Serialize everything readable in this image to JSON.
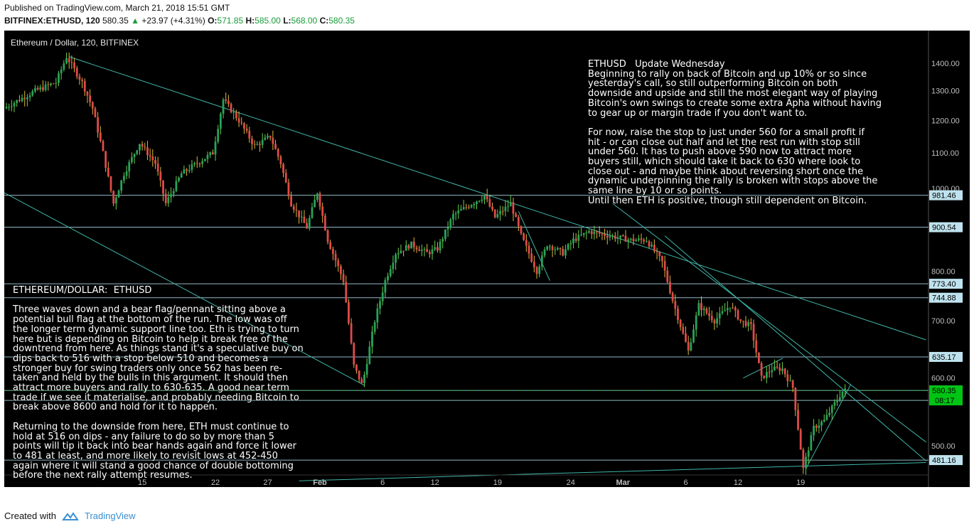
{
  "header": {
    "published": "Published on TradingView.com, March 21, 2018 15:51 GMT",
    "symbol": "BITFINEX:ETHUSD, 120",
    "last": "580.35",
    "change": "+23.97 (+4.31%)",
    "open": "571.85",
    "high": "585.00",
    "low": "568.00",
    "close": "580.35"
  },
  "legend": "Ethereum / Dollar, 120, BITFINEX",
  "notes": {
    "right": "ETHUSD   Update Wednesday\nBeginning to rally on back of Bitcoin and up 10% or so since\nyesterday's call, so still outperforming Bitcoin on both\ndownside and upside and still the most elegant way of playing\nBitcoin's own swings to create some extra Apha without having\nto gear up or margin trade if you don't want to.\n\nFor now, raise the stop to just under 560 for a small profit if\nhit - or can close out half and let the rest run with stop still\nunder 560. It has to push above 590 now to attract more\nbuyers still, which should take it back to 630 where look to\nclose out - and maybe think about reversing short once the\ndynamic underpinning the rally is broken with stops above the\nsame line by 10 or so points.\nUntil then ETH is positive, though still dependent on Bitcoin.",
    "left": "ETHEREUM/DOLLAR:  ETHUSD\n\nThree waves down and a bear flag/pennant sitting above a\npotential bull flag at the bottom of the run. The low was off\nthe longer term dynamic support line too. Eth is trying to turn\nhere but is depending on Bitcoin to help it break free of the\ndowntrend from here. As things stand it's a speculative buy on\ndips back to 516 with a stop below 510 and becomes a\nstronger buy for swing traders only once 562 has been re-\ntaken and held by the bulls in this argument. It should then\nattract more buyers and rally to 630-635. A good near term\ntrade if we see it materialise, and probably needing Bitcoin to\nbreak above 8600 and hold for it to happen.\n\nReturning to the downside from here, ETH must continue to\nhold at 516 on dips - any failure to do so by more than 5\npoints will tip it back into bear hands again and force it lower\nto 481 at least, and more likely to revisit lows at 452-450\nagain where it will stand a good chance of double bottoming\nbefore the next rally attempt resumes."
  },
  "footer": {
    "created_with": "Created with",
    "brand": "TradingView"
  },
  "chart_data": {
    "type": "line",
    "title": "Ethereum / Dollar, 120, BITFINEX",
    "y_scale": "log",
    "ylim": [
      455,
      1450
    ],
    "y_ticks": [
      1400,
      1300,
      1200,
      1100,
      1000,
      900,
      800,
      700,
      600,
      500
    ],
    "y_tick_labels": [
      "1400.00",
      "1300.00",
      "1200.00",
      "1100.00",
      "1000.00",
      "900.00",
      "800.00",
      "700.00",
      "600.00",
      "500.00"
    ],
    "x_ticks": [
      13,
      20,
      25,
      30,
      36,
      41,
      47,
      54,
      59,
      65,
      70,
      76,
      81,
      86
    ],
    "x_tick_labels": [
      "15",
      "22",
      "27",
      "Feb",
      "6",
      "12",
      "19",
      "24",
      "Mar",
      "6",
      "12",
      "19"
    ],
    "x_tick_index": [
      13,
      20,
      25,
      30,
      36,
      41,
      47,
      54,
      59,
      65,
      70,
      76
    ],
    "price_path": [
      {
        "t": 0,
        "p": 1240
      },
      {
        "t": 3,
        "p": 1300
      },
      {
        "t": 5,
        "p": 1330
      },
      {
        "t": 6,
        "p": 1425
      },
      {
        "t": 7.5,
        "p": 1330
      },
      {
        "t": 8.5,
        "p": 1240
      },
      {
        "t": 9.5,
        "p": 1100
      },
      {
        "t": 10.5,
        "p": 960
      },
      {
        "t": 11.5,
        "p": 1040
      },
      {
        "t": 13,
        "p": 1130
      },
      {
        "t": 14.5,
        "p": 1070
      },
      {
        "t": 15.5,
        "p": 960
      },
      {
        "t": 17,
        "p": 1040
      },
      {
        "t": 18.5,
        "p": 1070
      },
      {
        "t": 20,
        "p": 1100
      },
      {
        "t": 21,
        "p": 1270
      },
      {
        "t": 22.5,
        "p": 1200
      },
      {
        "t": 24,
        "p": 1120
      },
      {
        "t": 25.5,
        "p": 1150
      },
      {
        "t": 26.5,
        "p": 1070
      },
      {
        "t": 27.5,
        "p": 960
      },
      {
        "t": 29,
        "p": 900
      },
      {
        "t": 30,
        "p": 990
      },
      {
        "t": 31,
        "p": 870
      },
      {
        "t": 32.5,
        "p": 780
      },
      {
        "t": 33.5,
        "p": 620
      },
      {
        "t": 34.3,
        "p": 588
      },
      {
        "t": 35.5,
        "p": 700
      },
      {
        "t": 36.5,
        "p": 780
      },
      {
        "t": 37.5,
        "p": 840
      },
      {
        "t": 39,
        "p": 860
      },
      {
        "t": 40.5,
        "p": 840
      },
      {
        "t": 41.5,
        "p": 850
      },
      {
        "t": 43,
        "p": 930
      },
      {
        "t": 44.5,
        "p": 955
      },
      {
        "t": 46,
        "p": 980
      },
      {
        "t": 47,
        "p": 925
      },
      {
        "t": 48.5,
        "p": 960
      },
      {
        "t": 49.5,
        "p": 880
      },
      {
        "t": 51,
        "p": 800
      },
      {
        "t": 52,
        "p": 860
      },
      {
        "t": 53.5,
        "p": 840
      },
      {
        "t": 54.5,
        "p": 870
      },
      {
        "t": 56,
        "p": 890
      },
      {
        "t": 58,
        "p": 880
      },
      {
        "t": 60,
        "p": 870
      },
      {
        "t": 61.5,
        "p": 870
      },
      {
        "t": 63,
        "p": 820
      },
      {
        "t": 64,
        "p": 740
      },
      {
        "t": 65.5,
        "p": 645
      },
      {
        "t": 66.5,
        "p": 730
      },
      {
        "t": 68,
        "p": 700
      },
      {
        "t": 69.5,
        "p": 730
      },
      {
        "t": 70.5,
        "p": 700
      },
      {
        "t": 71.5,
        "p": 690
      },
      {
        "t": 72.5,
        "p": 600
      },
      {
        "t": 73.5,
        "p": 615
      },
      {
        "t": 74.5,
        "p": 615
      },
      {
        "t": 75.5,
        "p": 585
      },
      {
        "t": 76.5,
        "p": 470
      },
      {
        "t": 77.5,
        "p": 525
      },
      {
        "t": 78.5,
        "p": 535
      },
      {
        "t": 79.5,
        "p": 560
      },
      {
        "t": 80.3,
        "p": 580.35
      }
    ],
    "horizontal_levels": [
      981.46,
      900.54,
      773.4,
      744.88,
      635.17,
      580.35,
      565,
      481.16
    ],
    "level_labels": [
      "981.46",
      "900.54",
      "773.40",
      "744.88",
      "635.17",
      "580.35",
      "481.16"
    ],
    "current_price": "580.35",
    "countdown": "08:17",
    "trendlines": [
      {
        "t1": 6,
        "p1": 1425,
        "t2": 88,
        "p2": 665
      },
      {
        "t1": -1,
        "p1": 1000,
        "t2": 34.3,
        "p2": 588
      },
      {
        "t1": 28,
        "p1": 455,
        "t2": 88,
        "p2": 478
      },
      {
        "t1": 58,
        "p1": 960,
        "t2": 88,
        "p2": 505
      },
      {
        "t1": 63,
        "p1": 880,
        "t2": 88,
        "p2": 480
      },
      {
        "t1": 70.5,
        "p1": 600,
        "t2": 74.3,
        "p2": 633
      },
      {
        "t1": 76.5,
        "p1": 470,
        "t2": 80.8,
        "p2": 590
      },
      {
        "t1": 49,
        "p1": 940,
        "t2": 52,
        "p2": 780
      }
    ]
  },
  "colors": {
    "background": "#000000",
    "up": "#26a35c",
    "down": "#e14a4a",
    "wick_up": "#6ccf4c",
    "trendline": "#3fb6a8",
    "level": "#8fb9c7",
    "level_label_bg": "#bfe3ee",
    "current_label_bg": "#00c414",
    "axis_text": "#bfbfbf",
    "up_text": "#1a9c3a"
  }
}
